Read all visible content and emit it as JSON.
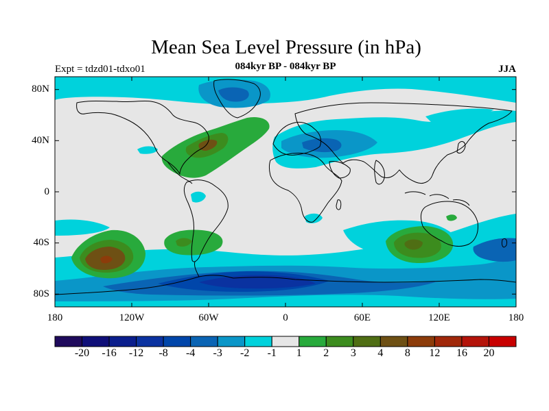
{
  "title": "Mean Sea Level Pressure (in hPa)",
  "experiment_label": "Expt = tdzd01-tdxo01",
  "period_label": "084kyr BP - 084kyr BP",
  "season_label": "JJA",
  "map": {
    "projection": "cylindrical-equidistant",
    "lon_range": [
      -180,
      180
    ],
    "lat_range": [
      -90,
      90
    ],
    "background_color": "#e6e6e6",
    "coastline_color": "#000000",
    "lat_tick_labels": [
      "80N",
      "40N",
      "0",
      "40S",
      "80S"
    ],
    "lon_tick_labels": [
      "180",
      "120W",
      "60W",
      "0",
      "60E",
      "120E",
      "180"
    ],
    "features": [
      {
        "name": "north-atlantic-high",
        "sign": "positive",
        "lon": -65,
        "lat": 35,
        "level": "3-4 hPa"
      },
      {
        "name": "south-pacific-high",
        "sign": "positive",
        "lon": -140,
        "lat": -53,
        "level": "8-12 hPa"
      },
      {
        "name": "south-atlantic-high",
        "sign": "positive",
        "lon": -75,
        "lat": -40,
        "level": "2-3 hPa"
      },
      {
        "name": "south-indian-high",
        "sign": "positive",
        "lon": 100,
        "lat": -40,
        "level": "3-4 hPa"
      },
      {
        "name": "antarctic-low",
        "sign": "negative",
        "lon": -45,
        "lat": -68,
        "level": "-8 to -12 hPa"
      },
      {
        "name": "arctic-low",
        "sign": "negative",
        "lon": -60,
        "lat": 77,
        "level": "-3 to -4 hPa"
      },
      {
        "name": "eurasia-low",
        "sign": "negative",
        "lon": 20,
        "lat": 40,
        "level": "-2 to -4 hPa"
      }
    ]
  },
  "colorbar": {
    "labels": [
      "-20",
      "-16",
      "-12",
      "-8",
      "-4",
      "-3",
      "-2",
      "-1",
      "1",
      "2",
      "3",
      "4",
      "8",
      "12",
      "16",
      "20"
    ],
    "colors": [
      "#1f0a5c",
      "#0f0f78",
      "#0a1e8c",
      "#0a32a0",
      "#0046aa",
      "#0a64b4",
      "#0a96c8",
      "#00d2dc",
      "#e6e6e6",
      "#28aa3c",
      "#3c8c1e",
      "#4f6e14",
      "#6e5014",
      "#8c3c0a",
      "#a0280a",
      "#b4140a",
      "#c80000"
    ]
  }
}
